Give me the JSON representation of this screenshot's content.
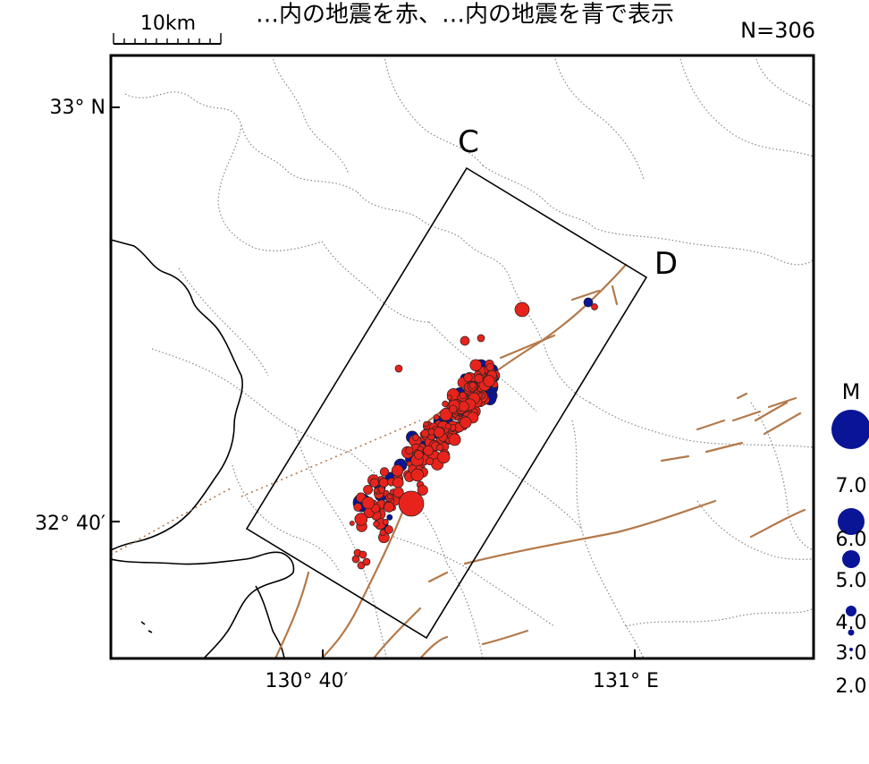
{
  "header": {
    "title_fragment": "…内の地震を赤、…内の地震を青で表示",
    "count_label": "N=306"
  },
  "scale_bar": {
    "label": "10km"
  },
  "axes": {
    "lat_labels": [
      "33° N",
      "32° 40′"
    ],
    "lon_labels": [
      "130° 40′",
      "131° E"
    ]
  },
  "section": {
    "corner_c": "C",
    "corner_d": "D"
  },
  "legend": {
    "title": "M",
    "magnitudes": [
      "7.0",
      "6.0",
      "5.0",
      "4.0",
      "3.0",
      "2.0"
    ]
  },
  "colors": {
    "period_a_event": "#e8231c",
    "period_b_event": "#0a1496",
    "fault": "#b3794a",
    "boundary": "#000000",
    "admin_border": "#888888"
  }
}
